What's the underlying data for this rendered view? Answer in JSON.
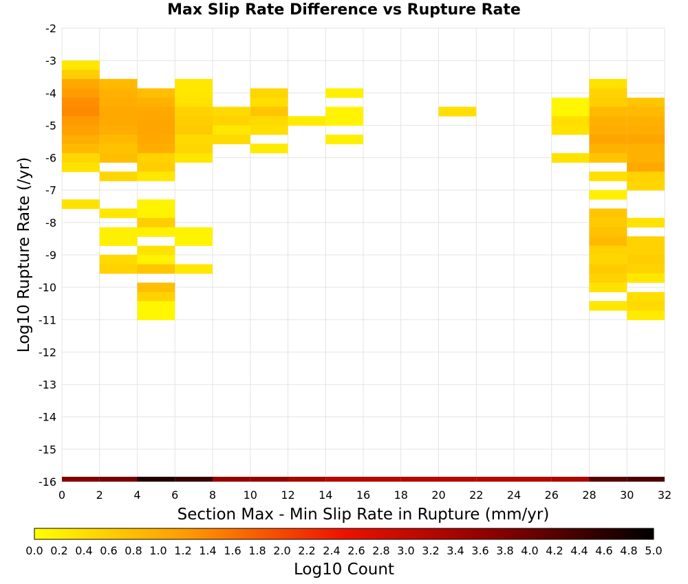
{
  "chart_data": {
    "type": "heatmap",
    "title": "Max Slip Rate Difference vs Rupture Rate",
    "xlabel": "Section Max - Min Slip Rate in Rupture (mm/yr)",
    "ylabel": "Log10 Rupture Rate (/yr)",
    "xlim": [
      0,
      32
    ],
    "ylim": [
      -16,
      -2
    ],
    "x_ticks": [
      "0",
      "2",
      "4",
      "6",
      "8",
      "10",
      "12",
      "14",
      "16",
      "18",
      "20",
      "22",
      "24",
      "26",
      "28",
      "30",
      "32"
    ],
    "y_ticks": [
      "-2",
      "-3",
      "-4",
      "-5",
      "-6",
      "-7",
      "-8",
      "-9",
      "-10",
      "-11",
      "-12",
      "-13",
      "-14",
      "-15",
      "-16"
    ],
    "grid": true,
    "bin_width_x": 2,
    "bin_height_y": 0.286,
    "colorscale": {
      "label": "Log10 Count",
      "min": 0.0,
      "max": 5.0,
      "stops": [
        "#ffff00",
        "#ff9900",
        "#ee1100",
        "#880000",
        "#000000"
      ],
      "ticks": [
        "0.0",
        "0.2",
        "0.4",
        "0.6",
        "0.8",
        "1.0",
        "1.2",
        "1.4",
        "1.6",
        "1.8",
        "2.0",
        "2.2",
        "2.4",
        "2.6",
        "2.8",
        "3.0",
        "3.2",
        "3.4",
        "3.6",
        "3.8",
        "4.0",
        "4.2",
        "4.4",
        "4.6",
        "4.8",
        "5.0"
      ]
    },
    "x_marginal_row": {
      "y": -16,
      "values": [
        3.8,
        3.9,
        4.7,
        4.5,
        3.6,
        3.6,
        3.4,
        3.2,
        3.2,
        3.2,
        3.2,
        3.2,
        3.2,
        3.3,
        4.2,
        4.3
      ]
    },
    "cells": [
      [
        1,
        -3.14,
        0.3
      ],
      [
        1,
        -3.43,
        0.6
      ],
      [
        1,
        -3.71,
        1.05
      ],
      [
        1,
        -4.0,
        1.2
      ],
      [
        1,
        -4.29,
        1.35
      ],
      [
        1,
        -4.57,
        1.4
      ],
      [
        1,
        -4.86,
        1.25
      ],
      [
        1,
        -5.14,
        1.15
      ],
      [
        1,
        -5.43,
        1.0
      ],
      [
        1,
        -5.71,
        0.85
      ],
      [
        1,
        -6.0,
        0.5
      ],
      [
        1,
        -6.29,
        0.35
      ],
      [
        1,
        -7.43,
        0.35
      ],
      [
        3,
        -3.71,
        0.85
      ],
      [
        3,
        -4.0,
        0.95
      ],
      [
        3,
        -4.29,
        1.0
      ],
      [
        3,
        -4.57,
        1.05
      ],
      [
        3,
        -4.86,
        1.05
      ],
      [
        3,
        -5.14,
        1.0
      ],
      [
        3,
        -5.43,
        0.85
      ],
      [
        3,
        -5.71,
        0.75
      ],
      [
        3,
        -6.0,
        0.8
      ],
      [
        3,
        -6.57,
        0.5
      ],
      [
        3,
        -7.71,
        0.3
      ],
      [
        3,
        -8.29,
        0.2
      ],
      [
        3,
        -8.57,
        0.2
      ],
      [
        3,
        -9.14,
        0.45
      ],
      [
        3,
        -9.43,
        0.55
      ],
      [
        5,
        -4.0,
        0.8
      ],
      [
        5,
        -4.29,
        0.95
      ],
      [
        5,
        -4.57,
        1.05
      ],
      [
        5,
        -4.86,
        1.1
      ],
      [
        5,
        -5.14,
        1.1
      ],
      [
        5,
        -5.43,
        1.05
      ],
      [
        5,
        -5.71,
        1.0
      ],
      [
        5,
        -6.0,
        0.55
      ],
      [
        5,
        -6.29,
        0.6
      ],
      [
        5,
        -6.57,
        0.3
      ],
      [
        5,
        -7.43,
        0.15
      ],
      [
        5,
        -7.71,
        0.15
      ],
      [
        5,
        -8.0,
        0.6
      ],
      [
        5,
        -8.29,
        0.2
      ],
      [
        5,
        -8.86,
        0.35
      ],
      [
        5,
        -9.14,
        0.15
      ],
      [
        5,
        -9.43,
        0.7
      ],
      [
        5,
        -10.0,
        0.8
      ],
      [
        5,
        -10.29,
        0.55
      ],
      [
        5,
        -10.57,
        0.1
      ],
      [
        5,
        -10.86,
        0.1
      ],
      [
        7,
        -3.71,
        0.3
      ],
      [
        7,
        -4.0,
        0.3
      ],
      [
        7,
        -4.29,
        0.35
      ],
      [
        7,
        -4.57,
        0.55
      ],
      [
        7,
        -4.86,
        0.6
      ],
      [
        7,
        -5.14,
        0.65
      ],
      [
        7,
        -5.43,
        0.45
      ],
      [
        7,
        -5.71,
        0.5
      ],
      [
        7,
        -6.0,
        0.3
      ],
      [
        7,
        -8.29,
        0.15
      ],
      [
        7,
        -8.57,
        0.15
      ],
      [
        7,
        -9.43,
        0.3
      ],
      [
        9,
        -4.57,
        0.45
      ],
      [
        9,
        -4.86,
        0.55
      ],
      [
        9,
        -5.14,
        0.3
      ],
      [
        9,
        -5.43,
        0.45
      ],
      [
        11,
        -4.0,
        0.5
      ],
      [
        11,
        -4.29,
        0.4
      ],
      [
        11,
        -4.57,
        0.7
      ],
      [
        11,
        -4.86,
        0.45
      ],
      [
        11,
        -5.14,
        0.4
      ],
      [
        11,
        -5.71,
        0.25
      ],
      [
        13,
        -4.86,
        0.25
      ],
      [
        15,
        -4.0,
        0.2
      ],
      [
        15,
        -4.57,
        0.15
      ],
      [
        15,
        -4.86,
        0.15
      ],
      [
        15,
        -5.43,
        0.2
      ],
      [
        21,
        -4.57,
        0.4
      ],
      [
        27,
        -4.29,
        0.1
      ],
      [
        27,
        -4.57,
        0.1
      ],
      [
        27,
        -4.86,
        0.4
      ],
      [
        27,
        -5.14,
        0.35
      ],
      [
        27,
        -6.0,
        0.35
      ],
      [
        29,
        -3.71,
        0.35
      ],
      [
        29,
        -4.0,
        0.55
      ],
      [
        29,
        -4.29,
        0.6
      ],
      [
        29,
        -4.57,
        0.85
      ],
      [
        29,
        -4.86,
        0.95
      ],
      [
        29,
        -5.14,
        1.0
      ],
      [
        29,
        -5.43,
        1.1
      ],
      [
        29,
        -5.71,
        0.95
      ],
      [
        29,
        -6.0,
        0.7
      ],
      [
        29,
        -6.57,
        0.4
      ],
      [
        29,
        -7.14,
        0.2
      ],
      [
        29,
        -7.71,
        0.7
      ],
      [
        29,
        -8.0,
        0.65
      ],
      [
        29,
        -8.29,
        0.75
      ],
      [
        29,
        -8.57,
        0.85
      ],
      [
        29,
        -8.86,
        0.55
      ],
      [
        29,
        -9.14,
        0.5
      ],
      [
        29,
        -9.43,
        0.65
      ],
      [
        29,
        -9.71,
        0.55
      ],
      [
        29,
        -10.0,
        0.35
      ],
      [
        29,
        -10.57,
        0.3
      ],
      [
        31,
        -4.29,
        0.7
      ],
      [
        31,
        -4.57,
        0.85
      ],
      [
        31,
        -4.86,
        0.95
      ],
      [
        31,
        -5.14,
        1.0
      ],
      [
        31,
        -5.43,
        1.1
      ],
      [
        31,
        -5.71,
        0.95
      ],
      [
        31,
        -6.0,
        0.95
      ],
      [
        31,
        -6.29,
        1.05
      ],
      [
        31,
        -6.57,
        0.55
      ],
      [
        31,
        -6.86,
        0.5
      ],
      [
        31,
        -8.0,
        0.35
      ],
      [
        31,
        -8.57,
        0.55
      ],
      [
        31,
        -8.86,
        0.55
      ],
      [
        31,
        -9.14,
        0.6
      ],
      [
        31,
        -9.43,
        0.55
      ],
      [
        31,
        -9.71,
        0.3
      ],
      [
        31,
        -10.29,
        0.4
      ],
      [
        31,
        -10.57,
        0.45
      ],
      [
        31,
        -10.86,
        0.25
      ]
    ]
  }
}
